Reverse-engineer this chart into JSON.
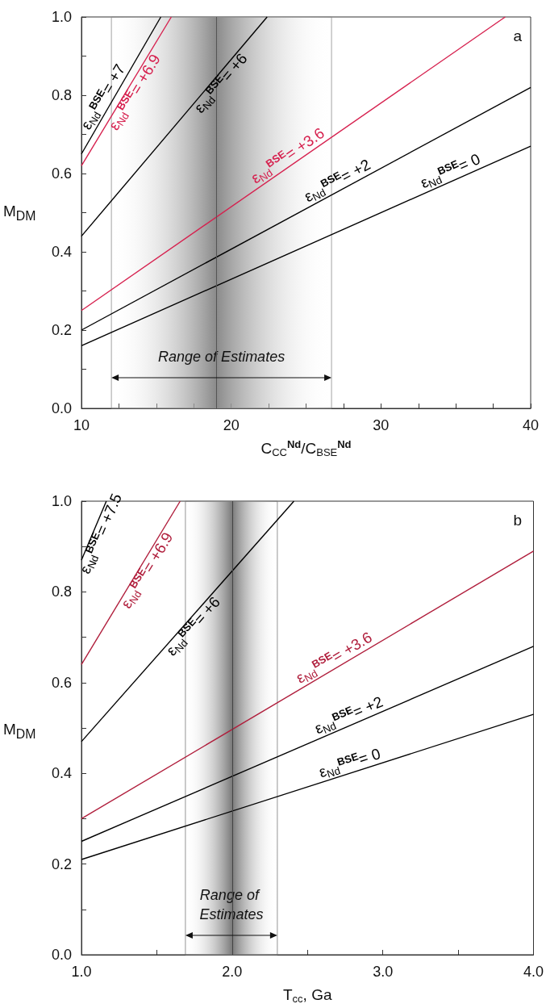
{
  "chart_data": [
    {
      "type": "line",
      "xlabel": "C$_{CC}$$^{Nd}$/C$_{BSE}$$^{Nd}$",
      "ylabel": "M$_{DM}$",
      "marker": "none",
      "line_style": "solid",
      "xlim": [
        10,
        40
      ],
      "xticks": [
        10,
        {
          "value": 12.5,
          "label": null
        },
        {
          "value": 15,
          "label": null
        },
        {
          "value": 17.5,
          "label": null
        },
        20,
        {
          "value": 22.5,
          "label": null
        },
        {
          "value": 25,
          "label": null
        },
        {
          "value": 27.5,
          "label": null
        },
        30,
        {
          "value": 32.5,
          "label": null
        },
        {
          "value": 35,
          "label": null
        },
        {
          "value": 37.5,
          "label": null
        },
        40
      ],
      "ylim": [
        0,
        1
      ],
      "yticks": [
        {
          "value": 0,
          "label": "0.0"
        },
        {
          "value": 0.1,
          "label": null
        },
        0.2,
        {
          "value": 0.3,
          "label": null
        },
        0.4,
        {
          "value": 0.5,
          "label": null
        },
        0.6,
        {
          "value": 0.7,
          "label": null
        },
        0.8,
        {
          "value": 0.9,
          "label": null
        },
        {
          "value": 1,
          "label": "1.0"
        }
      ],
      "series": [
        {
          "name": "ε$_{Nd}$$^{BSE}$= +7",
          "color": "#000000",
          "x": [
            10,
            15.3
          ],
          "values": [
            0.65,
            1.0
          ]
        },
        {
          "name": "ε$_{Nd}$$^{BSE}$= +6.9",
          "color": "#d6204e",
          "x": [
            10,
            16.0
          ],
          "values": [
            0.62,
            1.0
          ]
        },
        {
          "name": "ε$_{Nd}$$^{BSE}$= +6",
          "color": "#000000",
          "x": [
            10,
            22.4
          ],
          "values": [
            0.44,
            1.0
          ]
        },
        {
          "name": "ε$_{Nd}$$^{BSE}$= +3.6",
          "color": "#d6204e",
          "x": [
            10,
            38.3
          ],
          "values": [
            0.25,
            1.0
          ]
        },
        {
          "name": "ε$_{Nd}$$^{BSE}$= +2",
          "color": "#000000",
          "x": [
            10,
            40
          ],
          "values": [
            0.2,
            0.82
          ]
        },
        {
          "name": "ε$_{Nd}$$^{BSE}$= 0",
          "color": "#000000",
          "x": [
            10,
            40
          ],
          "values": [
            0.16,
            0.67
          ]
        }
      ],
      "bands": [
        {
          "axis": "x",
          "from": 12,
          "to": 26.7,
          "label": "Range of Estimates",
          "color": "#8a8a8a"
        }
      ],
      "ref_lines": [
        {
          "axis": "x",
          "value": 19,
          "color": "#555555"
        }
      ],
      "annotations": [
        "a"
      ]
    },
    {
      "type": "line",
      "xlabel": "T$_{cc}$, Ga",
      "ylabel": "M$_{DM}$",
      "marker": "none",
      "line_style": "solid",
      "xlim": [
        1,
        4
      ],
      "xticks": [
        {
          "value": 1,
          "label": "1.0"
        },
        {
          "value": 1.5,
          "label": null
        },
        {
          "value": 2,
          "label": "2.0"
        },
        {
          "value": 2.5,
          "label": null
        },
        {
          "value": 3,
          "label": "3.0"
        },
        {
          "value": 3.5,
          "label": null
        },
        {
          "value": 4,
          "label": "4.0"
        }
      ],
      "ylim": [
        0,
        1
      ],
      "yticks": [
        {
          "value": 0,
          "label": "0.0"
        },
        {
          "value": 0.1,
          "label": null
        },
        0.2,
        {
          "value": 0.3,
          "label": null
        },
        0.4,
        {
          "value": 0.5,
          "label": null
        },
        0.6,
        {
          "value": 0.7,
          "label": null
        },
        0.8,
        {
          "value": 0.9,
          "label": null
        },
        {
          "value": 1,
          "label": "1.0"
        }
      ],
      "series": [
        {
          "name": "ε$_{Nd}$$^{BSE}$= +7.5",
          "color": "#000000",
          "x": [
            1,
            1.165
          ],
          "values": [
            0.87,
            1.0
          ]
        },
        {
          "name": "ε$_{Nd}$$^{BSE}$= +6.9",
          "color": "#b01e3c",
          "x": [
            1,
            1.655
          ],
          "values": [
            0.64,
            1.0
          ]
        },
        {
          "name": "ε$_{Nd}$$^{BSE}$= +6",
          "color": "#000000",
          "x": [
            1,
            2.41
          ],
          "values": [
            0.47,
            1.0
          ]
        },
        {
          "name": "ε$_{Nd}$$^{BSE}$= +3.6",
          "color": "#b01e3c",
          "x": [
            1,
            4
          ],
          "values": [
            0.3,
            0.89
          ]
        },
        {
          "name": "ε$_{Nd}$$^{BSE}$= +2",
          "color": "#000000",
          "x": [
            1,
            4
          ],
          "values": [
            0.25,
            0.68
          ]
        },
        {
          "name": "ε$_{Nd}$$^{BSE}$= 0",
          "color": "#000000",
          "x": [
            1,
            4
          ],
          "values": [
            0.21,
            0.53
          ]
        }
      ],
      "bands": [
        {
          "axis": "x",
          "from": 1.69,
          "to": 2.3,
          "label": "Range of Estimates",
          "color": "#7a7a7a"
        }
      ],
      "ref_lines": [
        {
          "axis": "x",
          "value": 2,
          "color": "#444444"
        }
      ],
      "annotations": [
        "b"
      ]
    }
  ]
}
